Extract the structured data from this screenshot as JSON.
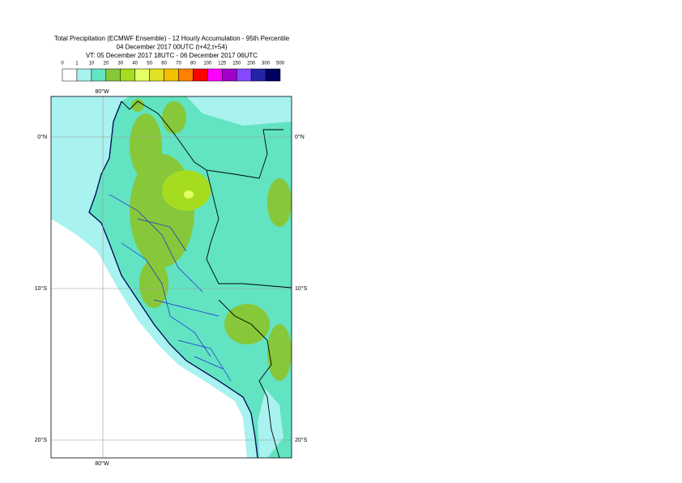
{
  "header": {
    "title": [
      "Total Precipitation (ECMWF Ensemble) - 12 Hourly Accumulation - 95th Percentile",
      "04 December 2017 00UTC (t+42,t+54)",
      "VT: 05 December 2017 18UTC - 06 December 2017 06UTC"
    ]
  },
  "legend": {
    "labels": [
      "0",
      "1",
      "10",
      "20",
      "30",
      "40",
      "50",
      "60",
      "70",
      "80",
      "100",
      "125",
      "150",
      "200",
      "300",
      "500"
    ],
    "colors": [
      "#ffffff",
      "#a8f2f0",
      "#62e3c2",
      "#86c83a",
      "#a6dc20",
      "#e2ff66",
      "#e2e024",
      "#f2c000",
      "#ff8000",
      "#ff0000",
      "#ff00ff",
      "#a000c8",
      "#8448ff",
      "#2424a8",
      "#000060"
    ]
  },
  "map": {
    "top_label": "80°W",
    "bottom_label": "80°W",
    "left_labels": [
      "0°N",
      "10°S",
      "20°S"
    ],
    "right_labels": [
      "0°N",
      "10°S",
      "20°S"
    ]
  }
}
